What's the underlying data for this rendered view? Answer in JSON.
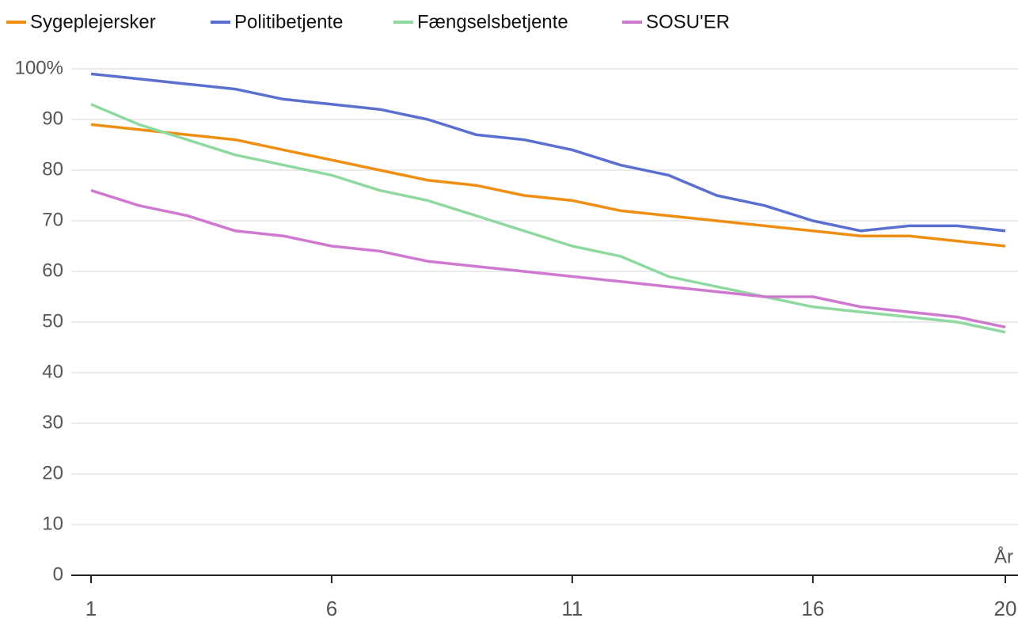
{
  "chart_data": {
    "type": "line",
    "x_label": "År",
    "x": [
      1,
      2,
      3,
      4,
      5,
      6,
      7,
      8,
      9,
      10,
      11,
      12,
      13,
      14,
      15,
      16,
      17,
      18,
      19,
      20
    ],
    "xlim": [
      1,
      20
    ],
    "xticks": [
      1,
      6,
      11,
      16,
      20
    ],
    "ylim": [
      0,
      100
    ],
    "yticks": [
      0,
      10,
      20,
      30,
      40,
      50,
      60,
      70,
      80,
      90,
      {
        "value": 100,
        "label": "100%"
      }
    ],
    "grid": true,
    "legend": "top",
    "series": [
      {
        "name": "Sygeplejersker",
        "color": "#ef8f12",
        "values": [
          89,
          88,
          87,
          86,
          84,
          82,
          80,
          78,
          77,
          75,
          74,
          72,
          71,
          70,
          69,
          68,
          67,
          67,
          66,
          65
        ]
      },
      {
        "name": "Politibetjente",
        "color": "#5b6fcf",
        "values": [
          99,
          98,
          97,
          96,
          94,
          93,
          92,
          90,
          87,
          86,
          84,
          81,
          79,
          75,
          73,
          70,
          68,
          69,
          69,
          68
        ]
      },
      {
        "name": "Fængselsbetjente",
        "color": "#8fd9a0",
        "values": [
          93,
          89,
          86,
          83,
          81,
          79,
          76,
          74,
          71,
          68,
          65,
          63,
          59,
          57,
          55,
          53,
          52,
          51,
          50,
          48
        ]
      },
      {
        "name": "SOSU'ER",
        "color": "#cf78d0",
        "values": [
          76,
          73,
          71,
          68,
          67,
          65,
          64,
          62,
          61,
          60,
          59,
          58,
          57,
          56,
          55,
          55,
          53,
          52,
          51,
          49
        ]
      }
    ]
  }
}
